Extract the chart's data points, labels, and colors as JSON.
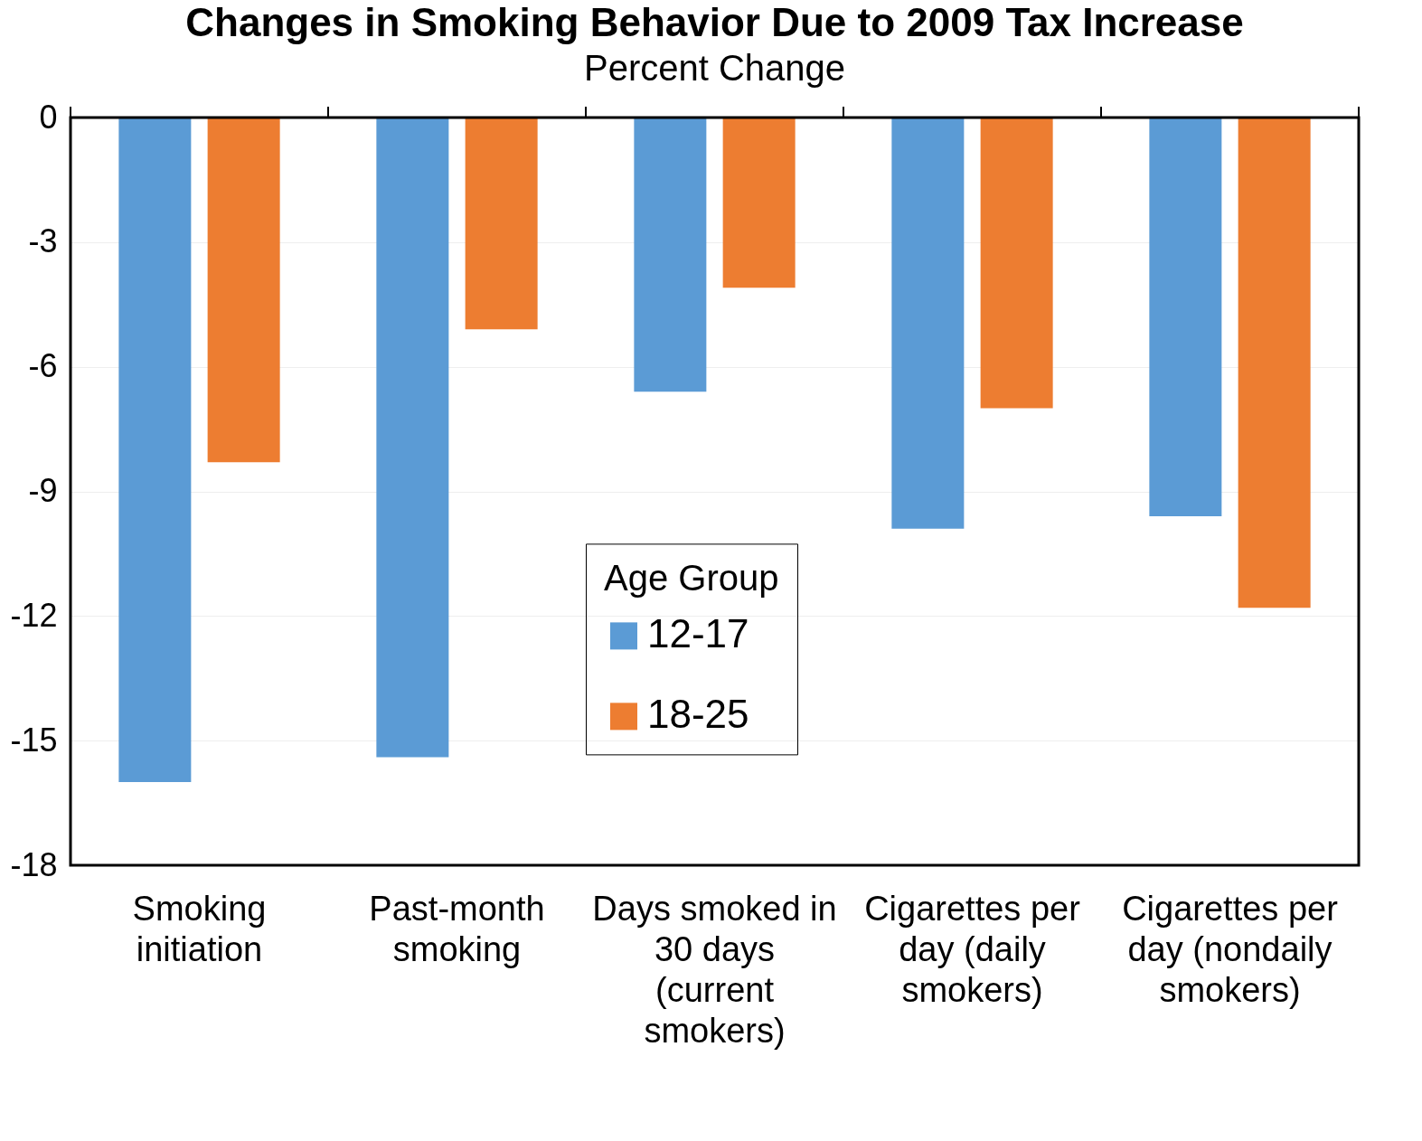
{
  "chart_data": {
    "type": "bar",
    "title": "Changes in Smoking Behavior Due to 2009 Tax Increase",
    "ylabel": "Percent Change",
    "legend_title": "Age Group",
    "categories": [
      "Smoking initiation",
      "Past-month smoking",
      "Days smoked in 30 days (current smokers)",
      "Cigarettes per day (daily smokers)",
      "Cigarettes per day (nondaily smokers)"
    ],
    "series": [
      {
        "name": "12-17",
        "color": "#5b9bd5",
        "values": [
          -16.0,
          -15.4,
          -6.6,
          -9.9,
          -9.6
        ]
      },
      {
        "name": "18-25",
        "color": "#ed7d31",
        "values": [
          -8.3,
          -5.1,
          -4.1,
          -7.0,
          -11.8
        ]
      }
    ],
    "ylim": [
      -18,
      0
    ],
    "yticks": [
      0,
      -3,
      -6,
      -9,
      -12,
      -15,
      -18
    ],
    "grid": "y",
    "legend": "center"
  }
}
